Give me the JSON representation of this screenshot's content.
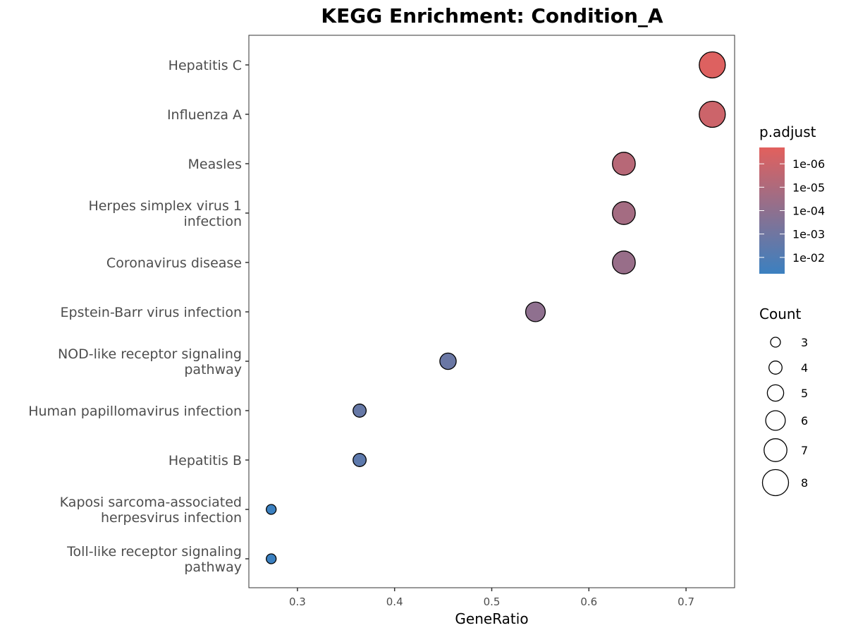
{
  "chart_data": {
    "type": "scatter",
    "title": "KEGG Enrichment: Condition_A",
    "xlabel": "GeneRatio",
    "ylabel": "",
    "xlim": [
      0.25,
      0.75
    ],
    "xticks": [
      "0.3",
      "0.4",
      "0.5",
      "0.6",
      "0.7"
    ],
    "grid": false,
    "points": [
      {
        "category": "Hepatitis C",
        "gene_ratio": 0.727,
        "count": 8,
        "p_adjust": 3e-07
      },
      {
        "category": "Influenza A",
        "gene_ratio": 0.727,
        "count": 8,
        "p_adjust": 1e-06
      },
      {
        "category": "Measles",
        "gene_ratio": 0.636,
        "count": 7,
        "p_adjust": 5e-06
      },
      {
        "category": "Herpes simplex virus 1 infection",
        "gene_ratio": 0.636,
        "count": 7,
        "p_adjust": 2e-05
      },
      {
        "category": "Coronavirus disease",
        "gene_ratio": 0.636,
        "count": 7,
        "p_adjust": 5e-05
      },
      {
        "category": "Epstein-Barr virus infection",
        "gene_ratio": 0.545,
        "count": 6,
        "p_adjust": 0.0001
      },
      {
        "category": "NOD-like receptor signaling pathway",
        "gene_ratio": 0.455,
        "count": 5,
        "p_adjust": 0.0015
      },
      {
        "category": "Human papillomavirus infection",
        "gene_ratio": 0.364,
        "count": 4,
        "p_adjust": 0.002
      },
      {
        "category": "Hepatitis B",
        "gene_ratio": 0.364,
        "count": 4,
        "p_adjust": 0.004
      },
      {
        "category": "Kaposi sarcoma-associated herpesvirus infection",
        "gene_ratio": 0.273,
        "count": 3,
        "p_adjust": 0.05
      },
      {
        "category": "Toll-like receptor signaling pathway",
        "gene_ratio": 0.273,
        "count": 3,
        "p_adjust": 0.05
      }
    ],
    "color_legend": {
      "title": "p.adjust",
      "labels": [
        "1e-06",
        "1e-05",
        "1e-04",
        "1e-03",
        "1e-02"
      ],
      "values": [
        1e-06,
        1e-05,
        0.0001,
        0.001,
        0.01
      ],
      "range": [
        2e-07,
        0.05
      ],
      "low_color": "#e2605d",
      "high_color": "#3b80c0"
    },
    "size_legend": {
      "title": "Count",
      "labels": [
        "3",
        "4",
        "5",
        "6",
        "7",
        "8"
      ],
      "values": [
        3,
        4,
        5,
        6,
        7,
        8
      ]
    }
  }
}
